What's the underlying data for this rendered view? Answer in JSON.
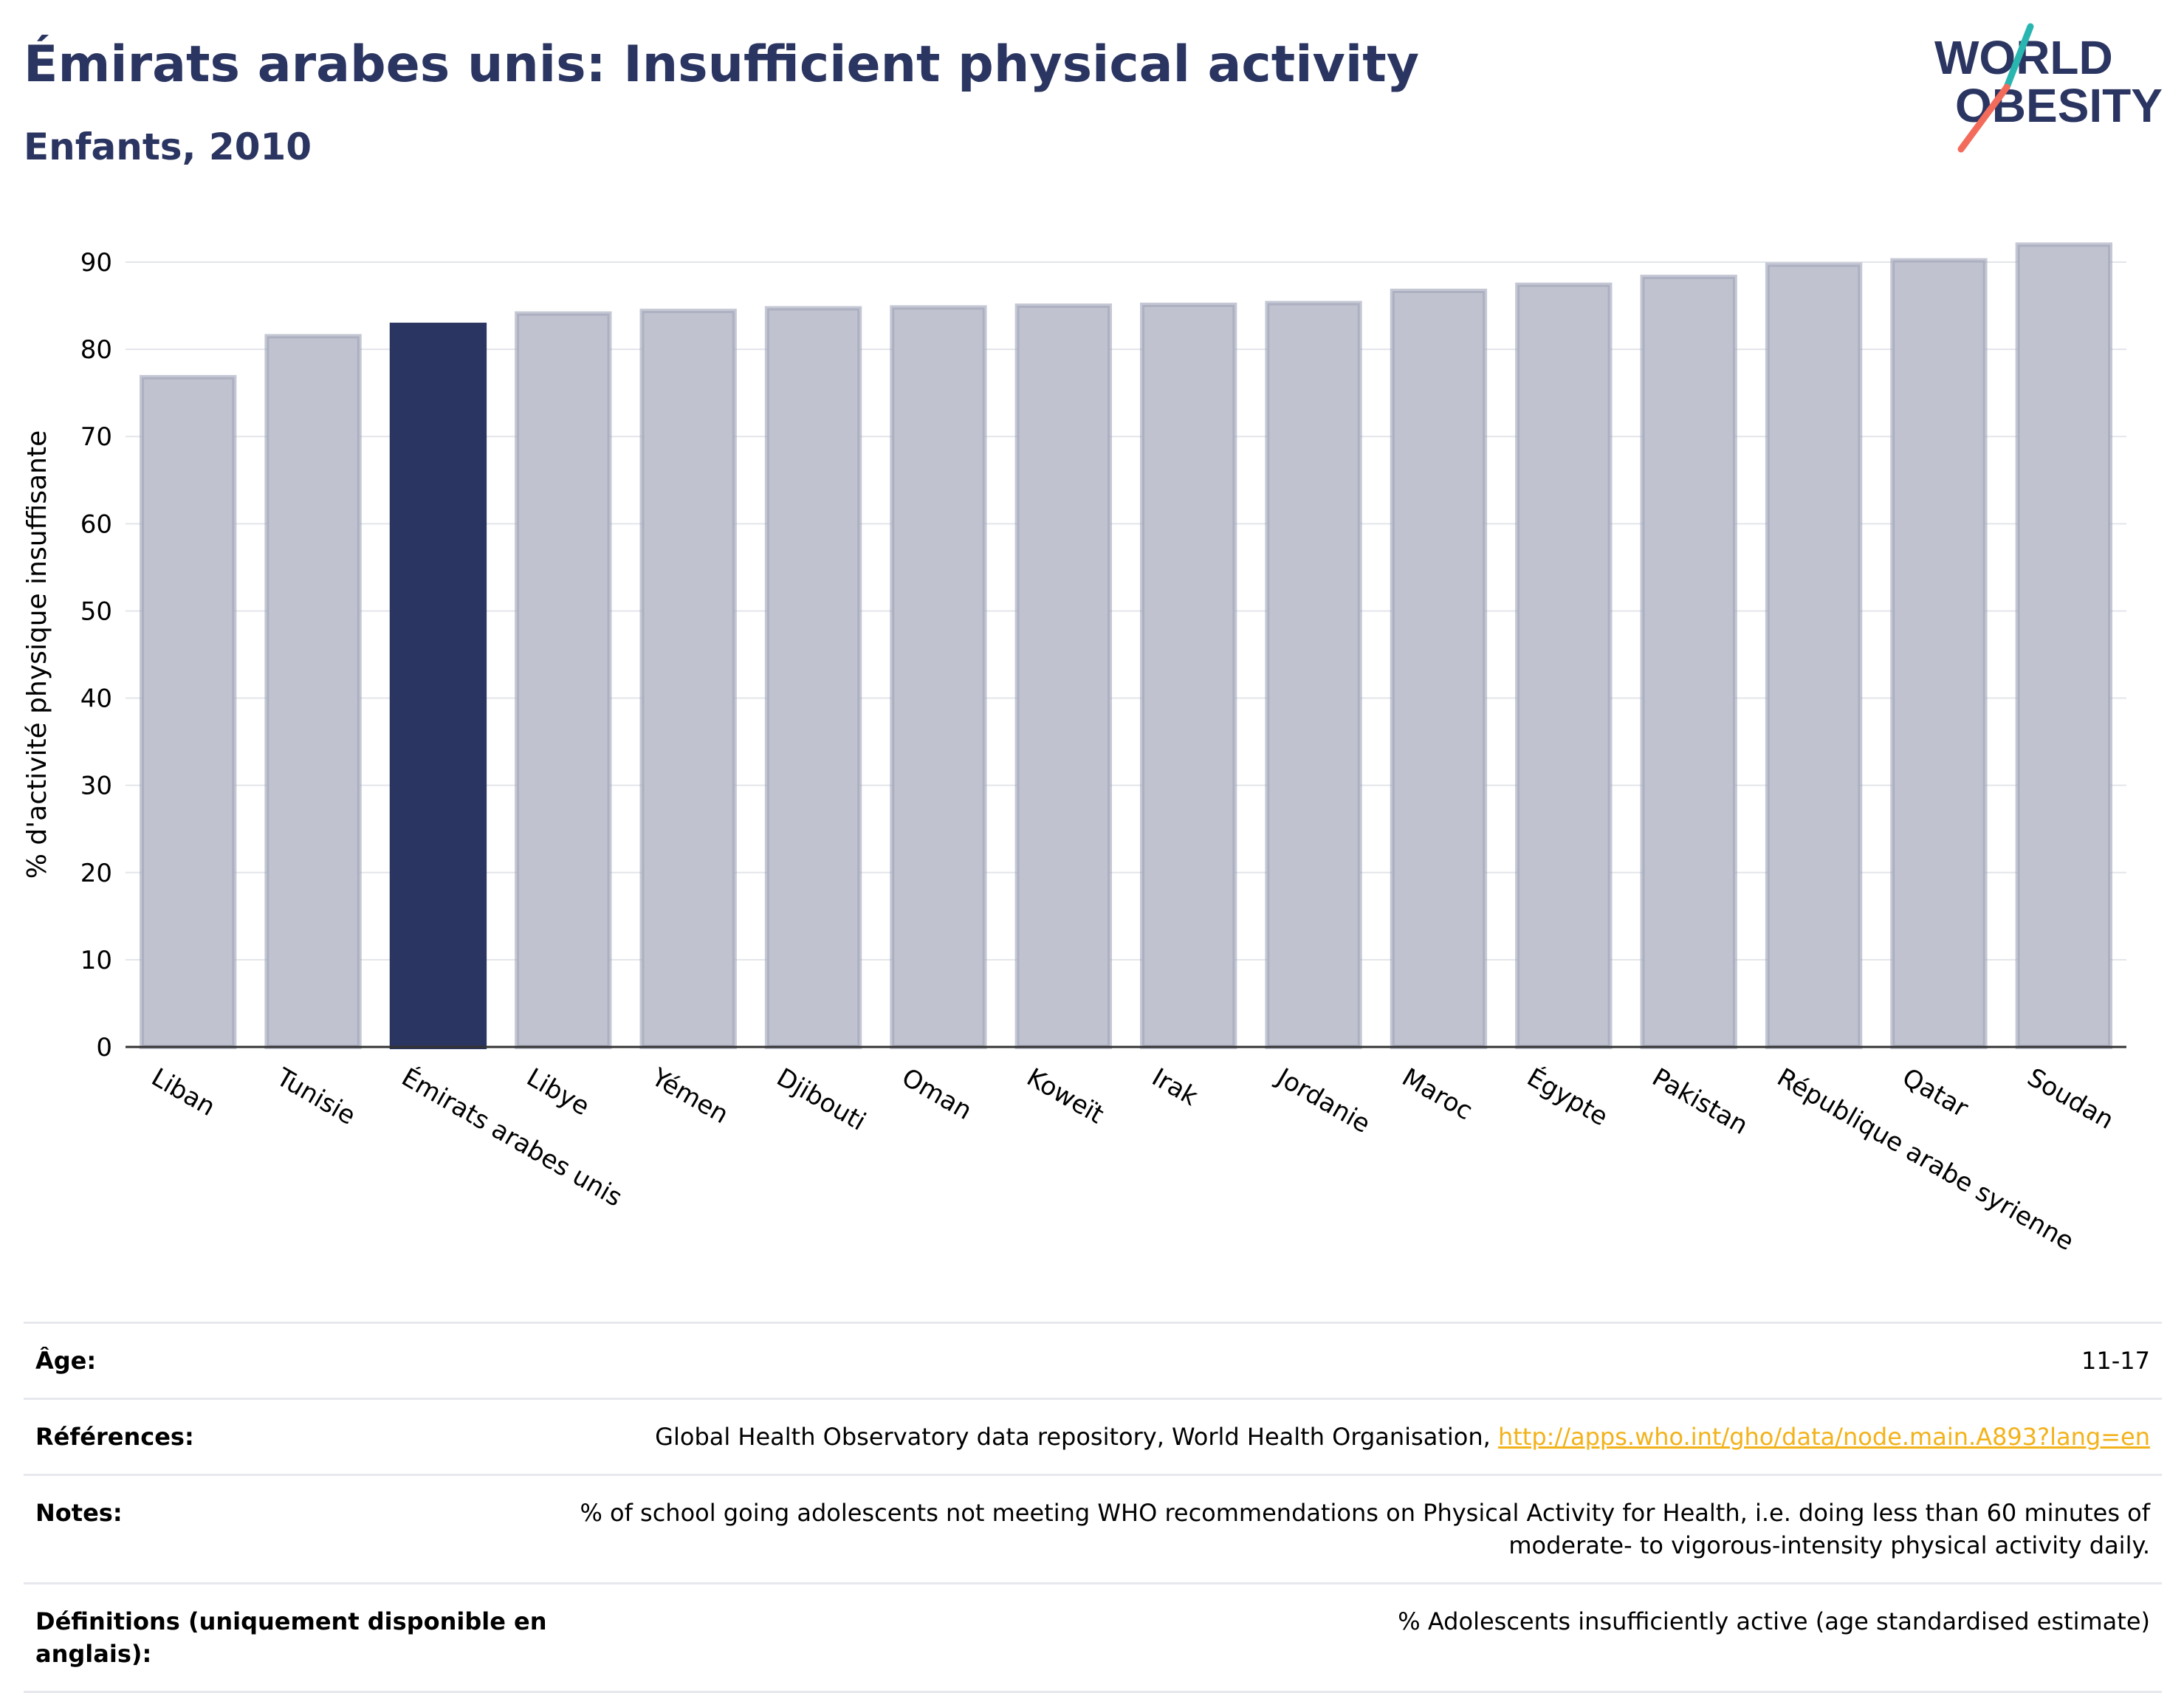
{
  "header": {
    "title": "Émirats arabes unis: Insufficient physical activity",
    "subtitle": "Enfants, 2010"
  },
  "logo": {
    "line1": "WORLD",
    "line2": "OBESITY",
    "colors": {
      "navy": "#2b3561",
      "teal": "#2ab6b0",
      "coral": "#f26b5b"
    }
  },
  "colors": {
    "highlight": "#2b3561",
    "bar": "#c0c3cf",
    "bar_border": "#9ea3b8"
  },
  "chart_data": {
    "type": "bar",
    "ylabel": "% d'activité physique insuffisante",
    "xlabel": "",
    "ylim": [
      0,
      95
    ],
    "yticks": [
      0,
      10,
      20,
      30,
      40,
      50,
      60,
      70,
      80,
      90
    ],
    "grid": true,
    "highlight": "Émirats arabes unis",
    "categories": [
      "Liban",
      "Tunisie",
      "Émirats arabes unis",
      "Libye",
      "Yémen",
      "Djibouti",
      "Oman",
      "Koweït",
      "Irak",
      "Jordanie",
      "Maroc",
      "Égypte",
      "Pakistan",
      "République arabe syrienne",
      "Qatar",
      "Soudan"
    ],
    "values": [
      76.8,
      81.5,
      82.8,
      84.1,
      84.4,
      84.7,
      84.8,
      85.0,
      85.1,
      85.3,
      86.7,
      87.4,
      88.3,
      89.7,
      90.2,
      92.0
    ]
  },
  "meta": {
    "age_label": "Âge:",
    "age_value": "11-17",
    "refs_label": "Références:",
    "refs_text": "Global Health Observatory data repository, World Health Organisation, ",
    "refs_link": "http://apps.who.int/gho/data/node.main.A893?lang=en",
    "notes_label": "Notes:",
    "notes_value": "% of school going adolescents not meeting WHO recommendations on Physical Activity for Health, i.e. doing less than 60 minutes of moderate- to vigorous-intensity physical activity daily.",
    "defs_label": "Définitions (uniquement disponible en anglais):",
    "defs_value": "% Adolescents insufficiently active (age standardised estimate)"
  }
}
